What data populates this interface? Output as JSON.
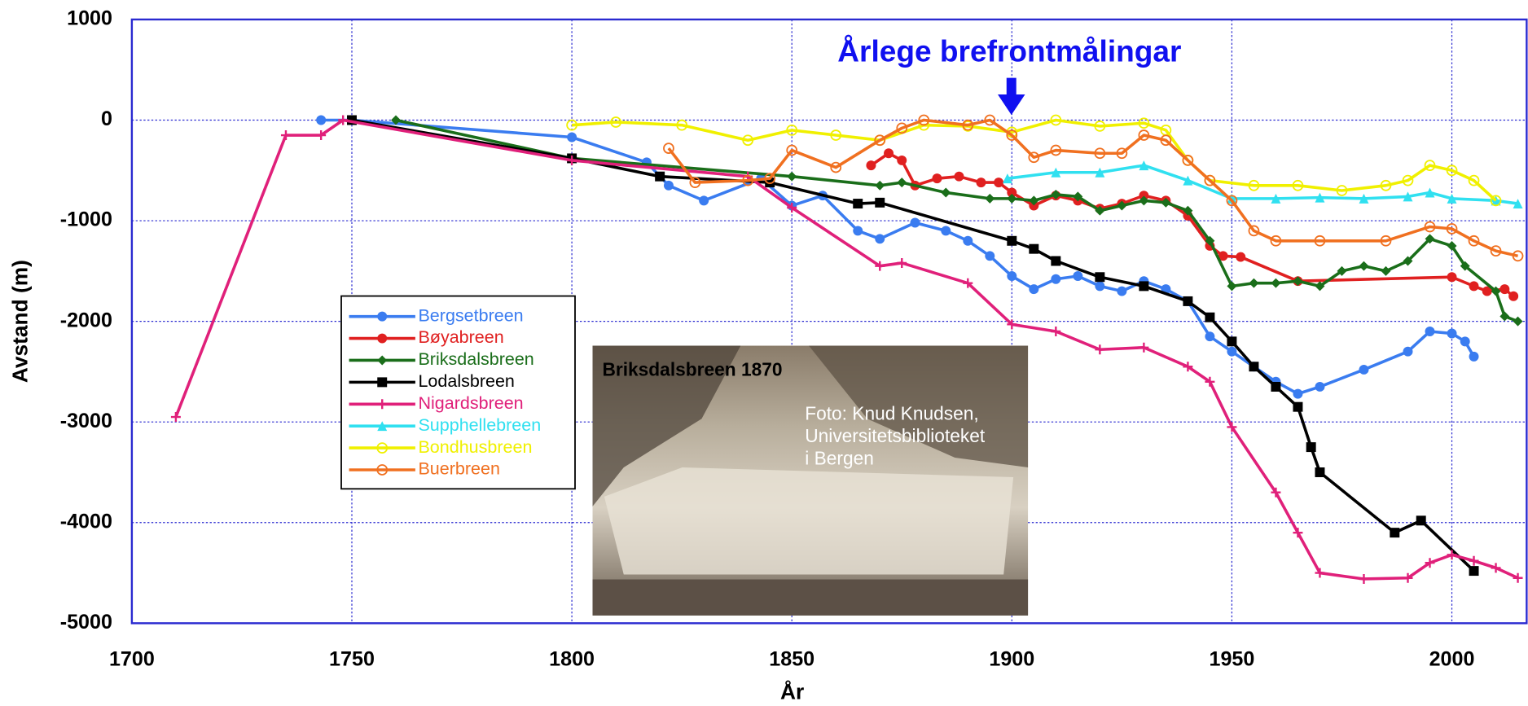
{
  "chart_data": {
    "type": "line",
    "annotation": "Årlege brefrontmålingar",
    "xlabel": "År",
    "ylabel": "Avstand (m)",
    "xlim": [
      1700,
      2017
    ],
    "ylim": [
      -5000,
      1000
    ],
    "xticks": [
      1700,
      1750,
      1800,
      1850,
      1900,
      1950,
      2000
    ],
    "yticks": [
      1000,
      0,
      -1000,
      -2000,
      -3000,
      -4000,
      -5000
    ],
    "grid": true,
    "legend": "left",
    "photo": {
      "title": "Briksdalsbreen 1870",
      "credit": [
        "Foto: Knud Knudsen,",
        "Universitetsbiblioteket",
        "i Bergen"
      ]
    },
    "series": [
      {
        "name": "Bergsetbreen",
        "color": "#3a7cf0",
        "marker": "circle",
        "x": [
          1743,
          1750,
          1800,
          1817,
          1822,
          1830,
          1843,
          1850,
          1857,
          1865,
          1870,
          1878,
          1885,
          1890,
          1895,
          1900,
          1905,
          1910,
          1915,
          1920,
          1925,
          1930,
          1935,
          1940,
          1945,
          1950,
          1955,
          1960,
          1965,
          1970,
          1980,
          1990,
          1995,
          2000,
          2003,
          2005
        ],
        "values": [
          0,
          0,
          -170,
          -420,
          -650,
          -800,
          -580,
          -850,
          -750,
          -1100,
          -1180,
          -1020,
          -1100,
          -1200,
          -1350,
          -1550,
          -1680,
          -1580,
          -1550,
          -1650,
          -1700,
          -1600,
          -1680,
          -1800,
          -2150,
          -2300,
          -2450,
          -2600,
          -2720,
          -2650,
          -2480,
          -2300,
          -2100,
          -2120,
          -2200,
          -2350
        ]
      },
      {
        "name": "Bøyabreen",
        "color": "#e02020",
        "marker": "circle",
        "x": [
          1868,
          1872,
          1875,
          1878,
          1883,
          1888,
          1893,
          1897,
          1900,
          1905,
          1910,
          1915,
          1920,
          1925,
          1930,
          1935,
          1940,
          1945,
          1948,
          1952,
          1965,
          2000,
          2005,
          2008,
          2012,
          2014
        ],
        "values": [
          -450,
          -330,
          -400,
          -650,
          -580,
          -560,
          -620,
          -620,
          -720,
          -850,
          -750,
          -800,
          -880,
          -830,
          -750,
          -800,
          -950,
          -1250,
          -1350,
          -1360,
          -1600,
          -1560,
          -1650,
          -1700,
          -1680,
          -1750
        ]
      },
      {
        "name": "Briksdalsbreen",
        "color": "#1a6e1a",
        "marker": "diamond",
        "x": [
          1760,
          1800,
          1850,
          1870,
          1875,
          1885,
          1895,
          1900,
          1905,
          1910,
          1915,
          1920,
          1925,
          1930,
          1935,
          1940,
          1945,
          1950,
          1955,
          1960,
          1965,
          1970,
          1975,
          1980,
          1985,
          1990,
          1995,
          2000,
          2003,
          2010,
          2012,
          2015
        ],
        "values": [
          0,
          -380,
          -560,
          -650,
          -620,
          -720,
          -780,
          -780,
          -800,
          -740,
          -760,
          -900,
          -850,
          -800,
          -820,
          -900,
          -1200,
          -1650,
          -1620,
          -1620,
          -1600,
          -1650,
          -1500,
          -1450,
          -1500,
          -1400,
          -1180,
          -1250,
          -1450,
          -1700,
          -1950,
          -2000
        ]
      },
      {
        "name": "Lodalsbreen",
        "color": "#000000",
        "marker": "square",
        "x": [
          1750,
          1800,
          1820,
          1845,
          1865,
          1870,
          1900,
          1905,
          1910,
          1920,
          1930,
          1940,
          1945,
          1950,
          1955,
          1960,
          1965,
          1968,
          1970,
          1987,
          1993,
          2005
        ],
        "values": [
          0,
          -380,
          -560,
          -620,
          -830,
          -820,
          -1200,
          -1280,
          -1400,
          -1560,
          -1650,
          -1800,
          -1960,
          -2200,
          -2450,
          -2650,
          -2850,
          -3250,
          -3500,
          -4100,
          -3980,
          -4480
        ]
      },
      {
        "name": "Nigardsbreen",
        "color": "#e0207a",
        "marker": "plus",
        "x": [
          1710,
          1735,
          1743,
          1748,
          1800,
          1840,
          1850,
          1870,
          1875,
          1890,
          1900,
          1910,
          1920,
          1930,
          1940,
          1945,
          1950,
          1960,
          1965,
          1970,
          1980,
          1990,
          1995,
          2000,
          2005,
          2010,
          2015
        ],
        "values": [
          -2950,
          -150,
          -150,
          0,
          -400,
          -560,
          -870,
          -1450,
          -1420,
          -1620,
          -2030,
          -2100,
          -2280,
          -2260,
          -2450,
          -2600,
          -3050,
          -3700,
          -4100,
          -4500,
          -4560,
          -4550,
          -4400,
          -4320,
          -4380,
          -4450,
          -4550
        ]
      },
      {
        "name": "Supphellebreen",
        "color": "#30e0f0",
        "marker": "triangle",
        "x": [
          1899,
          1910,
          1920,
          1930,
          1940,
          1950,
          1960,
          1970,
          1980,
          1990,
          1995,
          2000,
          2010,
          2015
        ],
        "values": [
          -580,
          -520,
          -520,
          -450,
          -600,
          -780,
          -780,
          -770,
          -780,
          -760,
          -720,
          -780,
          -800,
          -830
        ]
      },
      {
        "name": "Bondhusbreen",
        "color": "#f0f000",
        "marker": "ring",
        "x": [
          1800,
          1810,
          1825,
          1840,
          1850,
          1860,
          1870,
          1880,
          1890,
          1900,
          1910,
          1920,
          1930,
          1935,
          1940,
          1945,
          1955,
          1965,
          1975,
          1985,
          1990,
          1995,
          2000,
          2005,
          2010
        ],
        "values": [
          -50,
          -20,
          -50,
          -200,
          -100,
          -150,
          -200,
          -50,
          -60,
          -120,
          0,
          -60,
          -30,
          -100,
          -400,
          -600,
          -650,
          -650,
          -700,
          -650,
          -600,
          -450,
          -500,
          -600,
          -800
        ]
      },
      {
        "name": "Buerbreen",
        "color": "#f07020",
        "marker": "ring",
        "x": [
          1822,
          1828,
          1840,
          1845,
          1850,
          1860,
          1870,
          1875,
          1880,
          1890,
          1895,
          1900,
          1905,
          1910,
          1920,
          1925,
          1930,
          1935,
          1940,
          1945,
          1950,
          1955,
          1960,
          1970,
          1985,
          1995,
          2000,
          2005,
          2010,
          2015
        ],
        "values": [
          -280,
          -620,
          -600,
          -580,
          -300,
          -470,
          -200,
          -80,
          0,
          -50,
          0,
          -150,
          -370,
          -300,
          -330,
          -330,
          -150,
          -200,
          -400,
          -600,
          -800,
          -1100,
          -1200,
          -1200,
          -1200,
          -1060,
          -1080,
          -1200,
          -1300,
          -1350
        ]
      }
    ]
  }
}
